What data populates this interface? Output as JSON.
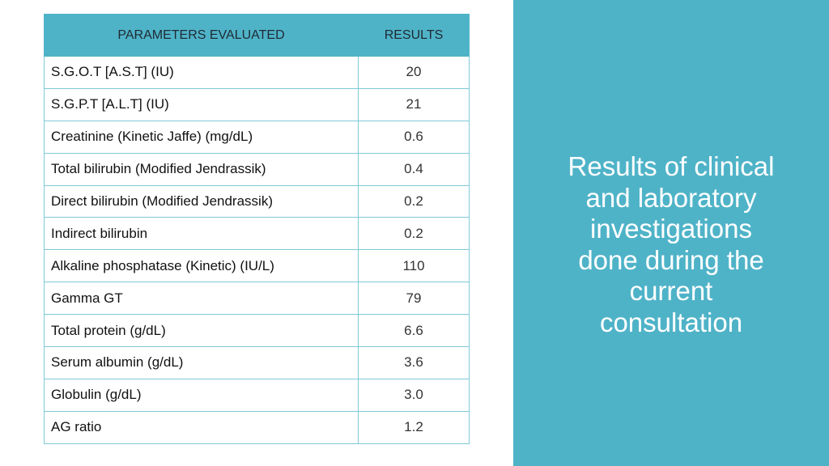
{
  "table": {
    "headers": {
      "parameter": "PARAMETERS EVALUATED",
      "result": "RESULTS"
    },
    "rows": [
      {
        "parameter": "S.G.O.T [A.S.T] (IU)",
        "result": "20"
      },
      {
        "parameter": "S.G.P.T [A.L.T] (IU)",
        "result": "21"
      },
      {
        "parameter": "Creatinine (Kinetic Jaffe) (mg/dL)",
        "result": "0.6"
      },
      {
        "parameter": "Total bilirubin (Modified Jendrassik)",
        "result": "0.4"
      },
      {
        "parameter": "Direct bilirubin (Modified Jendrassik)",
        "result": "0.2"
      },
      {
        "parameter": "Indirect bilirubin",
        "result": "0.2"
      },
      {
        "parameter": "Alkaline phosphatase (Kinetic) (IU/L)",
        "result": "110"
      },
      {
        "parameter": "Gamma GT",
        "result": "79"
      },
      {
        "parameter": "Total protein (g/dL)",
        "result": "6.6"
      },
      {
        "parameter": "Serum albumin (g/dL)",
        "result": "3.6"
      },
      {
        "parameter": "Globulin (g/dL)",
        "result": "3.0"
      },
      {
        "parameter": "AG ratio",
        "result": "1.2"
      }
    ]
  },
  "panel": {
    "title_lines": [
      "Results of clinical",
      "and laboratory",
      "investigations",
      "done during the",
      "current",
      "consultation"
    ]
  },
  "colors": {
    "accent": "#4fb3c8",
    "border": "#7ec9d8",
    "panel_text": "#ffffff"
  }
}
